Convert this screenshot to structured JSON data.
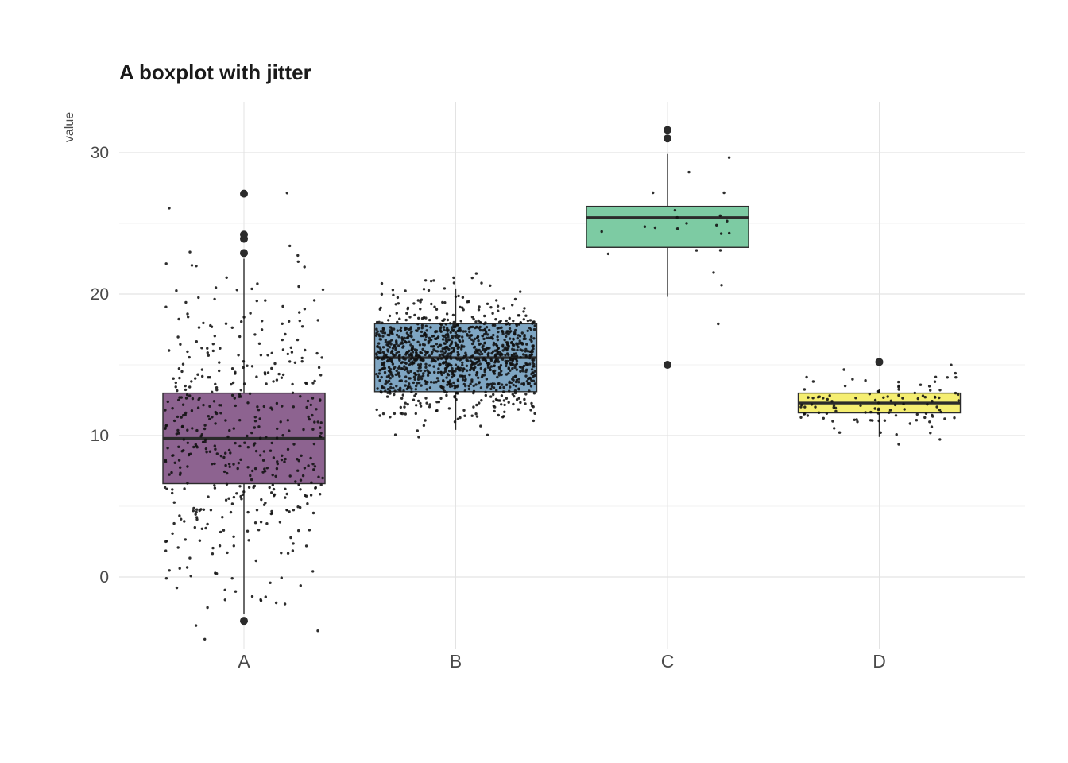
{
  "chart_data": {
    "type": "boxplot",
    "variant": "boxplot-with-jitter",
    "title": "A boxplot with jitter",
    "ylabel": "value",
    "xlabel": "",
    "categories": [
      "A",
      "B",
      "C",
      "D"
    ],
    "y_ticks": [
      0,
      10,
      20,
      30
    ],
    "y_minor_ticks": [
      5,
      15,
      25
    ],
    "ylim": [
      -5,
      33.5
    ],
    "legend": "none",
    "grid": "on",
    "groups": [
      {
        "label": "A",
        "fill": "#8d6390",
        "box": {
          "q1": 6.6,
          "median": 9.8,
          "q3": 13.0,
          "whisker_low": -2.6,
          "whisker_high": 22.5
        },
        "outliers": [
          27.1,
          24.2,
          23.9,
          22.9,
          -3.1
        ],
        "jitter": {
          "n": 480,
          "mean": 9.8,
          "sd": 5.2,
          "seed": 11
        }
      },
      {
        "label": "B",
        "fill": "#7fa6c3",
        "box": {
          "q1": 13.1,
          "median": 15.5,
          "q3": 17.9,
          "whisker_low": 10.4,
          "whisker_high": 20.4
        },
        "outliers": [],
        "jitter": {
          "n": 1200,
          "mean": 15.5,
          "sd": 1.9,
          "seed": 22
        }
      },
      {
        "label": "C",
        "fill": "#7dcba3",
        "box": {
          "q1": 23.3,
          "median": 25.4,
          "q3": 26.2,
          "whisker_low": 19.8,
          "whisker_high": 29.9
        },
        "outliers": [
          31.6,
          31.0,
          15.0
        ],
        "jitter": {
          "n": 22,
          "mean": 25.2,
          "sd": 2.7,
          "seed": 33
        }
      },
      {
        "label": "D",
        "fill": "#f5ee71",
        "box": {
          "q1": 11.6,
          "median": 12.3,
          "q3": 13.0,
          "whisker_low": 9.9,
          "whisker_high": 13.3
        },
        "outliers": [
          15.2
        ],
        "jitter": {
          "n": 110,
          "mean": 12.3,
          "sd": 1.1,
          "seed": 44
        }
      }
    ],
    "styles": {
      "background": "#ffffff",
      "grid_major": "#e3e3e3",
      "grid_minor": "#f1f1f1",
      "box_stroke": "#2b2b2b",
      "point_color": "#111111",
      "text_color": "#4a4a4a",
      "title_color": "#1a1a1a"
    }
  }
}
